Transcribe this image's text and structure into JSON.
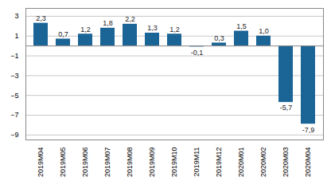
{
  "chart_data": {
    "type": "bar",
    "categories": [
      "2019M04",
      "2019M05",
      "2019M06",
      "2019M07",
      "2019M08",
      "2019M09",
      "2019M10",
      "2019M11",
      "2019M12",
      "2020M01",
      "2020M02",
      "2020M03",
      "2020M04"
    ],
    "values": [
      2.3,
      0.7,
      1.2,
      1.8,
      2.2,
      1.3,
      1.2,
      -0.1,
      0.3,
      1.5,
      1.0,
      -5.7,
      -7.9
    ],
    "value_labels": [
      "2,3",
      "0,7",
      "1,2",
      "1,8",
      "2,2",
      "1,3",
      "1,2",
      "-0,1",
      "0,3",
      "1,5",
      "1,0",
      "-5,7",
      "-7,9"
    ],
    "color": "#1a6496",
    "ylim": [
      -9.5,
      3.8
    ],
    "yticks": [
      -9,
      -7,
      -5,
      -3,
      -1,
      1,
      3
    ],
    "grid": true,
    "data_labels": true
  }
}
